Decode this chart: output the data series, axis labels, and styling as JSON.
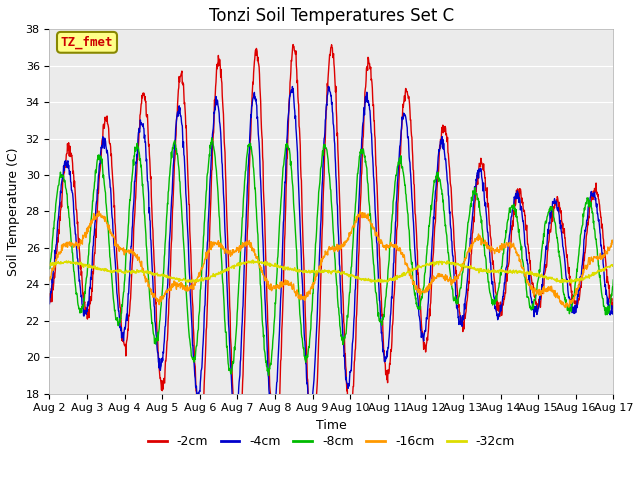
{
  "title": "Tonzi Soil Temperatures Set C",
  "ylabel": "Soil Temperature (C)",
  "xlabel": "Time",
  "ylim": [
    18,
    38
  ],
  "xlim": [
    0,
    15
  ],
  "x_tick_labels": [
    "Aug 2",
    "Aug 3",
    "Aug 4",
    "Aug 5",
    "Aug 6",
    "Aug 7",
    "Aug 8",
    "Aug 9",
    "Aug 10",
    "Aug 11",
    "Aug 12",
    "Aug 13",
    "Aug 14",
    "Aug 15",
    "Aug 16",
    "Aug 17"
  ],
  "annotation_text": "TZ_fmet",
  "annotation_color": "#cc0000",
  "annotation_bg": "#ffff88",
  "series_colors": [
    "#dd0000",
    "#0000cc",
    "#00bb00",
    "#ff9900",
    "#dddd00"
  ],
  "series_labels": [
    "-2cm",
    "-4cm",
    "-8cm",
    "-16cm",
    "-32cm"
  ],
  "plot_bg_color": "#ebebeb",
  "title_fontsize": 12,
  "axis_fontsize": 9,
  "tick_fontsize": 8
}
